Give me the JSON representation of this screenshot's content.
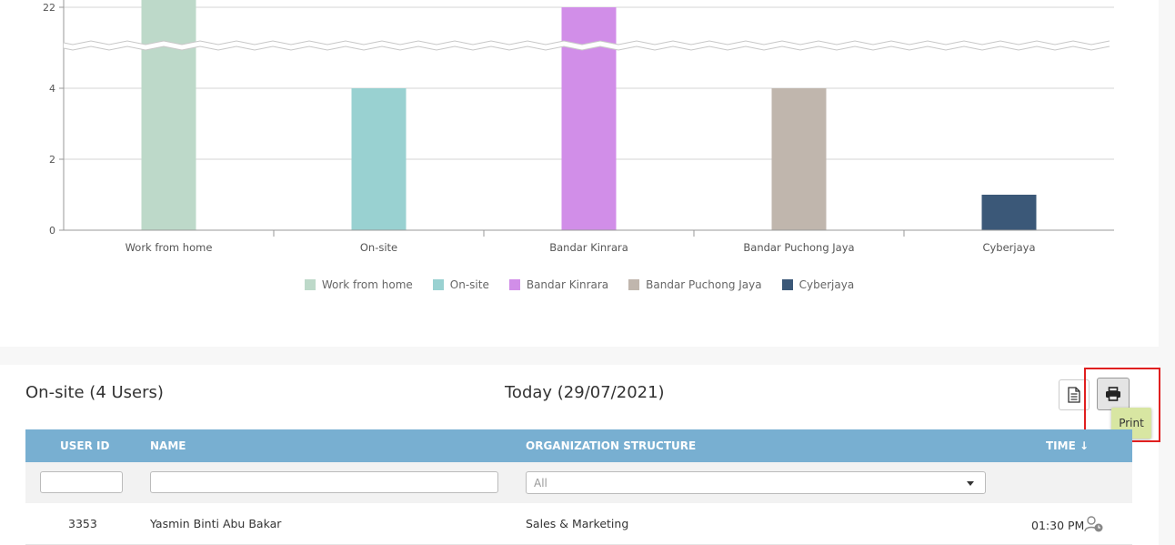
{
  "chart_data": {
    "type": "bar",
    "categories": [
      "Work from home",
      "On-site",
      "Bandar Kinrara",
      "Bandar Puchong Jaya",
      "Cyberjaya"
    ],
    "values": [
      23,
      4,
      22,
      4,
      1
    ],
    "colors": [
      "#bdd9c9",
      "#99d1d1",
      "#d18ee8",
      "#c0b6ad",
      "#3b5878"
    ],
    "y_ticks": [
      "0",
      "2",
      "4",
      "22"
    ],
    "axis_break": true,
    "legend": [
      "Work from home",
      "On-site",
      "Bandar Kinrara",
      "Bandar Puchong Jaya",
      "Cyberjaya"
    ],
    "legend_position": "bottom",
    "grid": true
  },
  "report": {
    "title": "On-site (4 Users)",
    "date": "Today (29/07/2021)",
    "print_tooltip": "Print",
    "columns": {
      "user_id": "USER ID",
      "name": "NAME",
      "org": "ORGANIZATION STRUCTURE",
      "time": "TIME ↓"
    },
    "filter": {
      "org_selected": "All"
    },
    "rows": [
      {
        "user_id": "3353",
        "name": "Yasmin Binti Abu Bakar",
        "org": "Sales & Marketing",
        "time": "01:30 PM"
      }
    ]
  },
  "icons": {
    "doc": "document-icon",
    "print": "printer-icon",
    "user_status": "user-clock-icon"
  }
}
